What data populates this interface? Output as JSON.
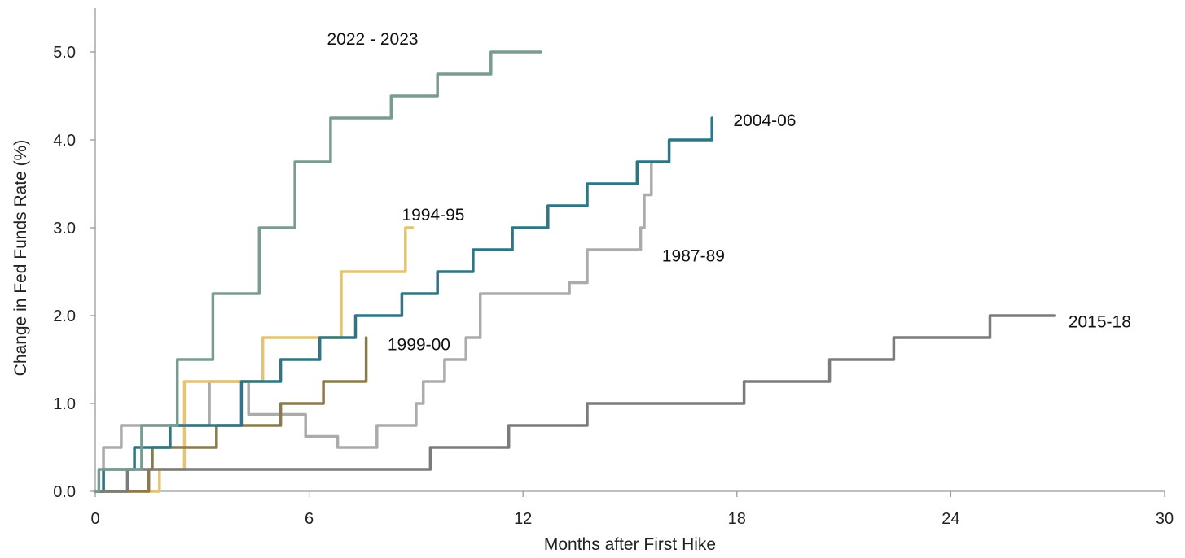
{
  "chart_data": {
    "type": "line",
    "title": "",
    "xlabel": "Months after First Hike",
    "ylabel": "Change in Fed Funds Rate (%)",
    "xlim": [
      0,
      30
    ],
    "ylim": [
      0,
      5.5
    ],
    "x_ticks": [
      0,
      6,
      12,
      18,
      24,
      30
    ],
    "x_tick_labels": [
      "0",
      "6",
      "12",
      "18",
      "24",
      "30"
    ],
    "y_ticks": [
      0,
      1,
      2,
      3,
      4,
      5
    ],
    "y_tick_labels": [
      "0.0",
      "1.0",
      "2.0",
      "3.0",
      "4.0",
      "5.0"
    ],
    "grid": false,
    "legend": "none",
    "series": [
      {
        "name": "1987-89",
        "color": "#ababab",
        "points": [
          [
            0,
            0
          ],
          [
            0.23,
            0
          ],
          [
            0.23,
            0.5
          ],
          [
            0.73,
            0.5
          ],
          [
            0.73,
            0.75
          ],
          [
            3.2,
            0.75
          ],
          [
            3.2,
            1.25
          ],
          [
            4.3,
            1.25
          ],
          [
            4.3,
            0.875
          ],
          [
            5.9,
            0.875
          ],
          [
            5.9,
            0.625
          ],
          [
            6.8,
            0.625
          ],
          [
            6.8,
            0.5
          ],
          [
            7.9,
            0.5
          ],
          [
            7.9,
            0.75
          ],
          [
            9.0,
            0.75
          ],
          [
            9.0,
            1.0
          ],
          [
            9.2,
            1.0
          ],
          [
            9.2,
            1.25
          ],
          [
            9.8,
            1.25
          ],
          [
            9.8,
            1.5
          ],
          [
            10.4,
            1.5
          ],
          [
            10.4,
            1.75
          ],
          [
            10.8,
            1.75
          ],
          [
            10.8,
            2.25
          ],
          [
            13.3,
            2.25
          ],
          [
            13.3,
            2.375
          ],
          [
            13.8,
            2.375
          ],
          [
            13.8,
            2.75
          ],
          [
            15.3,
            2.75
          ],
          [
            15.3,
            3.0
          ],
          [
            15.4,
            3.0
          ],
          [
            15.4,
            3.375
          ],
          [
            15.6,
            3.375
          ],
          [
            15.6,
            3.75
          ]
        ]
      },
      {
        "name": "1994-95",
        "color": "#e3c474",
        "points": [
          [
            0,
            0
          ],
          [
            1.8,
            0
          ],
          [
            1.8,
            0.25
          ],
          [
            2.5,
            0.25
          ],
          [
            2.5,
            1.25
          ],
          [
            4.7,
            1.25
          ],
          [
            4.7,
            1.75
          ],
          [
            6.9,
            1.75
          ],
          [
            6.9,
            2.5
          ],
          [
            8.7,
            2.5
          ],
          [
            8.7,
            3.0
          ],
          [
            8.9,
            3.0
          ]
        ]
      },
      {
        "name": "1999-00",
        "color": "#8c7a4a",
        "points": [
          [
            0,
            0
          ],
          [
            1.5,
            0
          ],
          [
            1.5,
            0.25
          ],
          [
            1.6,
            0.25
          ],
          [
            1.6,
            0.5
          ],
          [
            3.4,
            0.5
          ],
          [
            3.4,
            0.75
          ],
          [
            5.2,
            0.75
          ],
          [
            5.2,
            1.0
          ],
          [
            6.4,
            1.0
          ],
          [
            6.4,
            1.25
          ],
          [
            7.6,
            1.25
          ],
          [
            7.6,
            1.75
          ]
        ]
      },
      {
        "name": "2004-06",
        "color": "#2f7585",
        "points": [
          [
            0,
            0
          ],
          [
            0.23,
            0
          ],
          [
            0.23,
            0.25
          ],
          [
            1.1,
            0.25
          ],
          [
            1.1,
            0.5
          ],
          [
            2.1,
            0.5
          ],
          [
            2.1,
            0.75
          ],
          [
            4.1,
            0.75
          ],
          [
            4.1,
            1.25
          ],
          [
            5.2,
            1.25
          ],
          [
            5.2,
            1.5
          ],
          [
            6.3,
            1.5
          ],
          [
            6.3,
            1.75
          ],
          [
            7.3,
            1.75
          ],
          [
            7.3,
            2.0
          ],
          [
            8.6,
            2.0
          ],
          [
            8.6,
            2.25
          ],
          [
            9.6,
            2.25
          ],
          [
            9.6,
            2.5
          ],
          [
            10.6,
            2.5
          ],
          [
            10.6,
            2.75
          ],
          [
            11.7,
            2.75
          ],
          [
            11.7,
            3.0
          ],
          [
            12.7,
            3.0
          ],
          [
            12.7,
            3.25
          ],
          [
            13.8,
            3.25
          ],
          [
            13.8,
            3.5
          ],
          [
            15.2,
            3.5
          ],
          [
            15.2,
            3.75
          ],
          [
            16.1,
            3.75
          ],
          [
            16.1,
            4.0
          ],
          [
            17.3,
            4.0
          ],
          [
            17.3,
            4.25
          ]
        ]
      },
      {
        "name": "2015-18",
        "color": "#7b7b7b",
        "points": [
          [
            0,
            0
          ],
          [
            0.9,
            0
          ],
          [
            0.9,
            0.25
          ],
          [
            9.4,
            0.25
          ],
          [
            9.4,
            0.5
          ],
          [
            11.6,
            0.5
          ],
          [
            11.6,
            0.75
          ],
          [
            13.8,
            0.75
          ],
          [
            13.8,
            1.0
          ],
          [
            18.2,
            1.0
          ],
          [
            18.2,
            1.25
          ],
          [
            20.6,
            1.25
          ],
          [
            20.6,
            1.5
          ],
          [
            22.4,
            1.5
          ],
          [
            22.4,
            1.75
          ],
          [
            25.1,
            1.75
          ],
          [
            25.1,
            2.0
          ],
          [
            26.9,
            2.0
          ]
        ]
      },
      {
        "name": "2022 - 2023",
        "color": "#7a9b90",
        "points": [
          [
            0,
            0
          ],
          [
            0.1,
            0
          ],
          [
            0.1,
            0.25
          ],
          [
            1.3,
            0.25
          ],
          [
            1.3,
            0.75
          ],
          [
            2.3,
            0.75
          ],
          [
            2.3,
            1.5
          ],
          [
            3.3,
            1.5
          ],
          [
            3.3,
            2.25
          ],
          [
            4.6,
            2.25
          ],
          [
            4.6,
            3.0
          ],
          [
            5.6,
            3.0
          ],
          [
            5.6,
            3.75
          ],
          [
            6.6,
            3.75
          ],
          [
            6.6,
            4.25
          ],
          [
            8.3,
            4.25
          ],
          [
            8.3,
            4.5
          ],
          [
            9.6,
            4.5
          ],
          [
            9.6,
            4.75
          ],
          [
            11.1,
            4.75
          ],
          [
            11.1,
            5.0
          ],
          [
            12.5,
            5.0
          ]
        ]
      }
    ],
    "annotations": [
      {
        "series": "2022 - 2023",
        "text": "2022 - 2023",
        "x": 6.5,
        "y": 5.15
      },
      {
        "series": "2004-06",
        "text": "2004-06",
        "x": 17.9,
        "y": 4.22
      },
      {
        "series": "1994-95",
        "text": "1994-95",
        "x": 8.6,
        "y": 3.15
      },
      {
        "series": "1987-89",
        "text": "1987-89",
        "x": 15.9,
        "y": 2.68
      },
      {
        "series": "1999-00",
        "text": "1999-00",
        "x": 8.2,
        "y": 1.67
      },
      {
        "series": "2015-18",
        "text": "2015-18",
        "x": 27.3,
        "y": 1.93
      }
    ]
  }
}
